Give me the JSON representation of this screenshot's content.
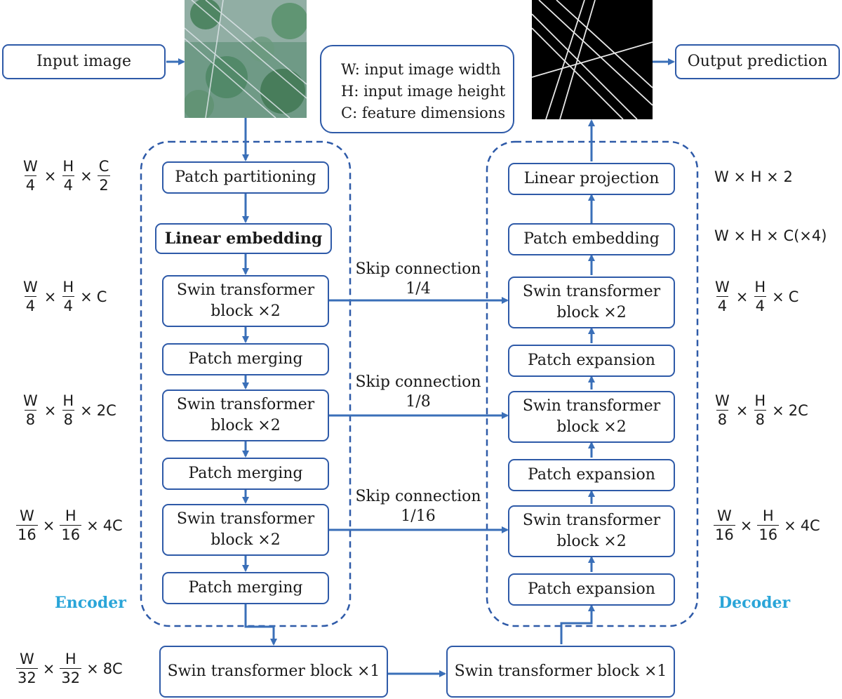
{
  "input_label": "Input image",
  "output_label": "Output prediction",
  "legend": [
    "W: input image width",
    "H: input image height",
    "C: feature dimensions"
  ],
  "encoder": {
    "label": "Encoder",
    "blocks": [
      "Patch partitioning",
      "Linear embedding",
      "Swin transformer\nblock ×2",
      "Patch merging",
      "Swin transformer\nblock ×2",
      "Patch merging",
      "Swin transformer\nblock ×2",
      "Patch merging"
    ]
  },
  "decoder": {
    "label": "Decoder",
    "blocks": [
      "Linear projection",
      "Patch embedding",
      "Swin transformer\nblock ×2",
      "Patch expansion",
      "Swin transformer\nblock ×2",
      "Patch expansion",
      "Swin transformer\nblock ×2",
      "Patch expansion"
    ]
  },
  "bottleneck": [
    "Swin transformer block ×1",
    "Swin transformer block ×1"
  ],
  "skips": [
    {
      "title": "Skip connection",
      "ratio": "1/4"
    },
    {
      "title": "Skip connection",
      "ratio": "1/8"
    },
    {
      "title": "Skip connection",
      "ratio": "1/16"
    }
  ],
  "left_dims": [
    {
      "w_num": "W",
      "w_den": "4",
      "h_num": "H",
      "h_den": "4",
      "c_num": "C",
      "c_den": "2",
      "c": ""
    },
    {
      "w_num": "W",
      "w_den": "4",
      "h_num": "H",
      "h_den": "4",
      "c": "C"
    },
    {
      "w_num": "W",
      "w_den": "8",
      "h_num": "H",
      "h_den": "8",
      "c": "2C"
    },
    {
      "w_num": "W",
      "w_den": "16",
      "h_num": "H",
      "h_den": "16",
      "c": "4C"
    },
    {
      "w_num": "W",
      "w_den": "32",
      "h_num": "H",
      "h_den": "32",
      "c": "8C"
    }
  ],
  "right_dims": [
    {
      "text": "W × H × 2"
    },
    {
      "text": "W × H × C(×4)"
    },
    {
      "w_num": "W",
      "w_den": "4",
      "h_num": "H",
      "h_den": "4",
      "c": "C"
    },
    {
      "w_num": "W",
      "w_den": "8",
      "h_num": "H",
      "h_den": "8",
      "c": "2C"
    },
    {
      "w_num": "W",
      "w_den": "16",
      "h_num": "H",
      "h_den": "16",
      "c": "4C"
    }
  ],
  "operator": "×",
  "colors": {
    "box_border": "#2e5aa8",
    "arrow": "#3a6fb8",
    "section_label": "#2aa5d8"
  }
}
